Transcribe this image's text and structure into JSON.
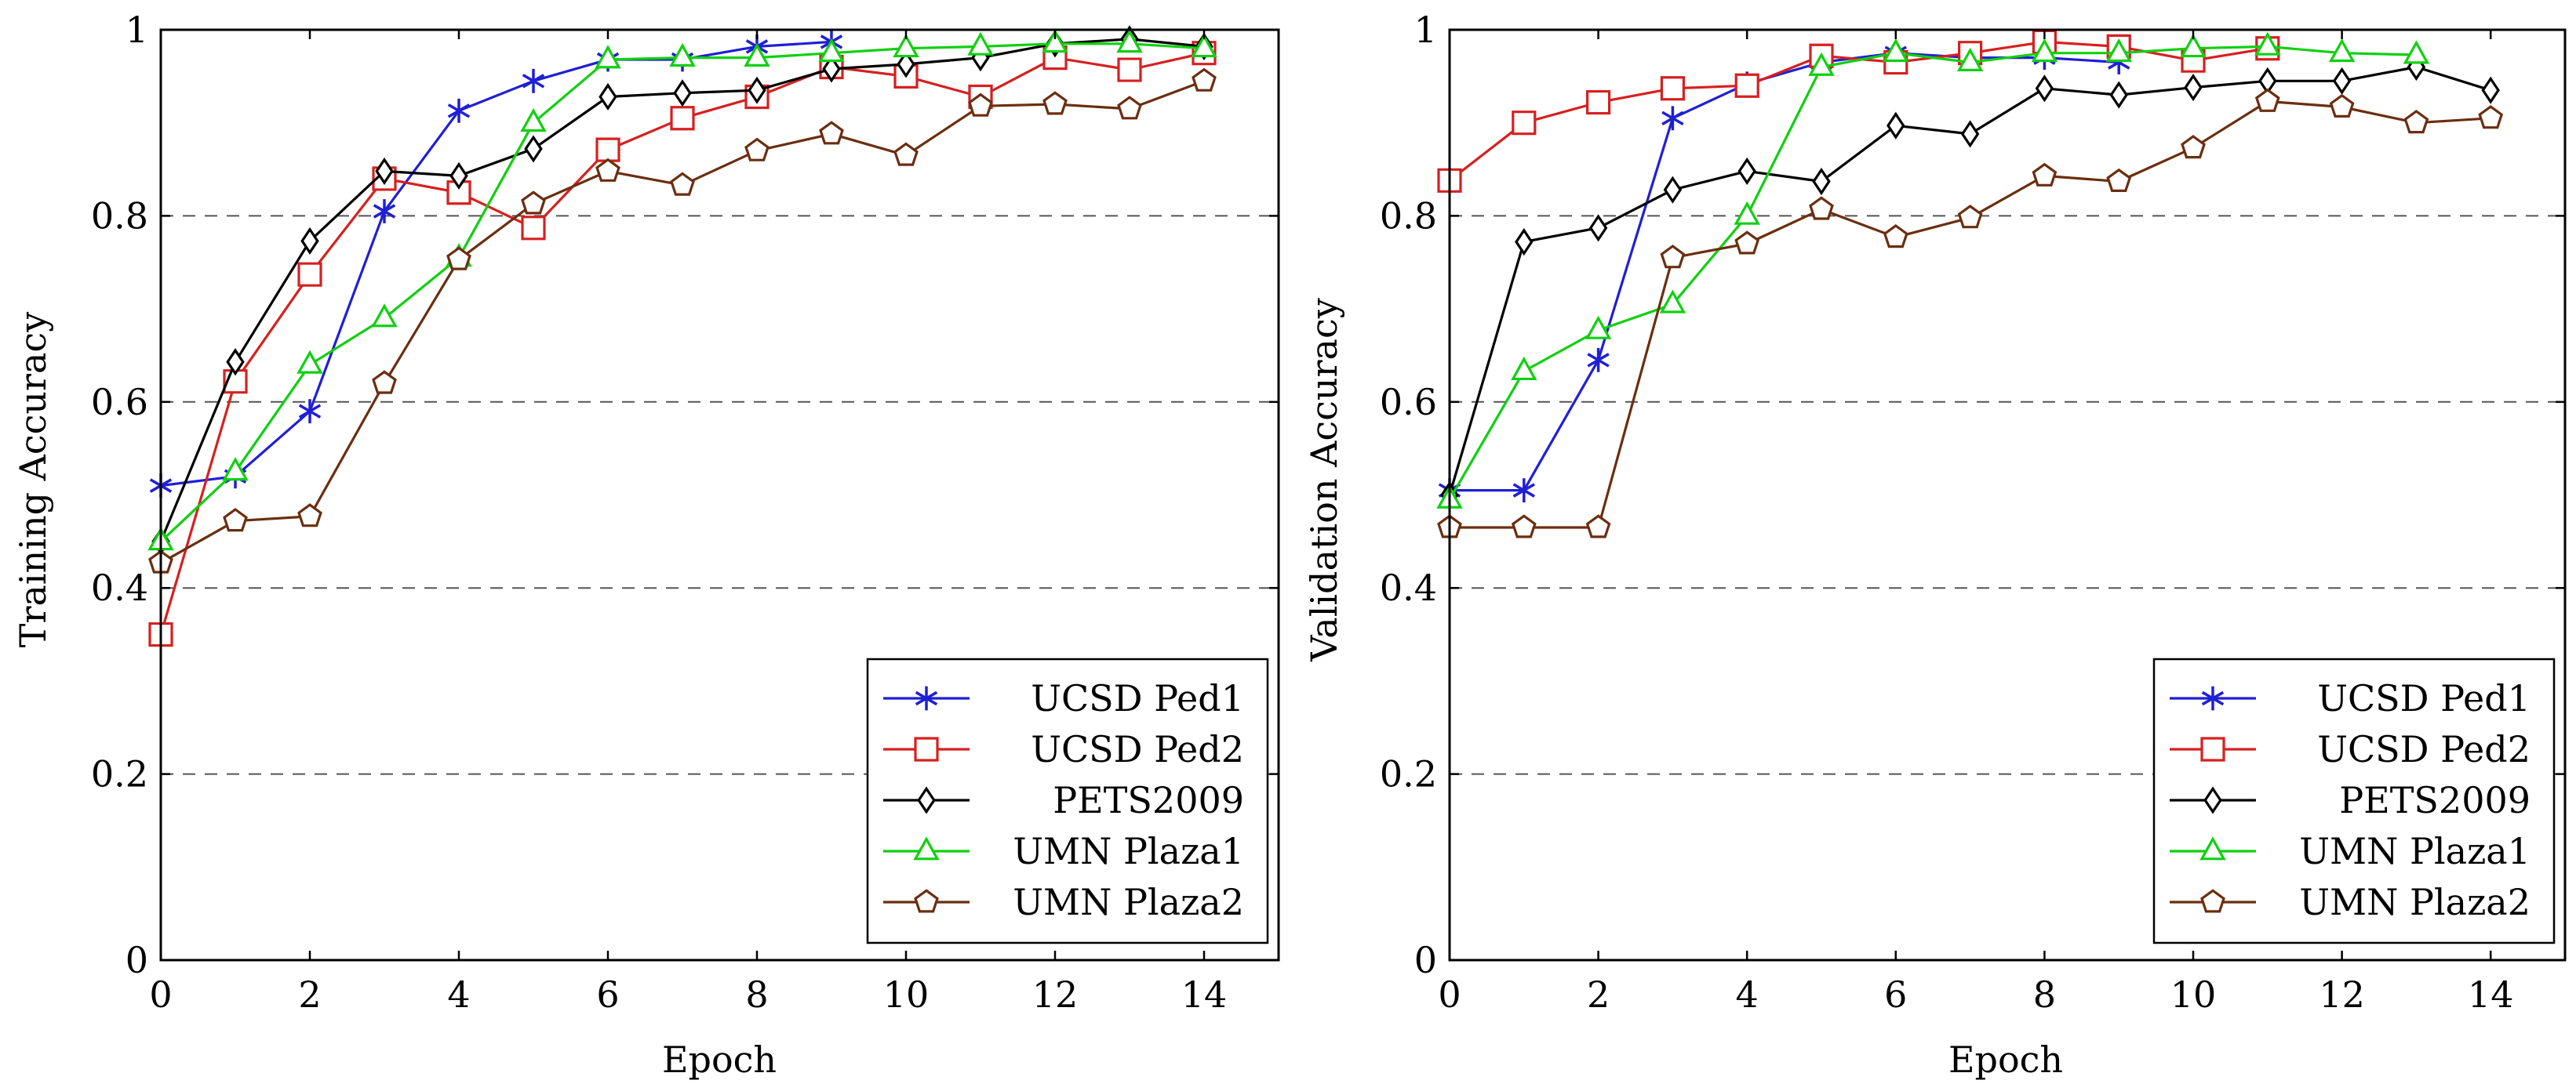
{
  "chart_data": [
    {
      "type": "line",
      "title": "",
      "xlabel": "Epoch",
      "ylabel": "Training Accuracy",
      "xlim": [
        0,
        15
      ],
      "ylim": [
        0,
        1
      ],
      "xticks": [
        0,
        2,
        4,
        6,
        8,
        10,
        12,
        14
      ],
      "yticks": [
        0,
        0.2,
        0.4,
        0.6,
        0.8,
        1
      ],
      "ytick_labels": [
        "0",
        "0.2",
        "0.4",
        "0.6",
        "0.8",
        "1"
      ],
      "grid": "horizontal-dashed",
      "legend_position": "bottom-right",
      "series": [
        {
          "name": "UCSD Ped1",
          "color": "#1f1fd6",
          "marker": "star",
          "x": [
            0,
            1,
            2,
            3,
            4,
            5,
            6,
            7,
            8,
            9
          ],
          "values": [
            0.51,
            0.52,
            0.59,
            0.805,
            0.913,
            0.945,
            0.968,
            0.968,
            0.982,
            0.987
          ]
        },
        {
          "name": "UCSD Ped2",
          "color": "#d62020",
          "marker": "square",
          "x": [
            0,
            1,
            2,
            3,
            4,
            5,
            6,
            7,
            8,
            9,
            10,
            11,
            12,
            13,
            14
          ],
          "values": [
            0.35,
            0.622,
            0.737,
            0.84,
            0.825,
            0.787,
            0.871,
            0.905,
            0.928,
            0.96,
            0.95,
            0.928,
            0.97,
            0.957,
            0.975
          ]
        },
        {
          "name": "PETS2009",
          "color": "#000000",
          "marker": "diamond",
          "x": [
            0,
            1,
            2,
            3,
            4,
            5,
            6,
            7,
            8,
            9,
            10,
            11,
            12,
            13,
            14
          ],
          "values": [
            0.45,
            0.643,
            0.773,
            0.848,
            0.843,
            0.872,
            0.928,
            0.932,
            0.935,
            0.958,
            0.963,
            0.97,
            0.985,
            0.99,
            0.982
          ]
        },
        {
          "name": "UMN Plaza1",
          "color": "#10d010",
          "marker": "triangle",
          "x": [
            0,
            1,
            2,
            3,
            4,
            5,
            6,
            7,
            8,
            9,
            10,
            11,
            12,
            13,
            14
          ],
          "values": [
            0.45,
            0.525,
            0.64,
            0.69,
            0.755,
            0.9,
            0.968,
            0.97,
            0.97,
            0.975,
            0.98,
            0.982,
            0.985,
            0.985,
            0.98
          ]
        },
        {
          "name": "UMN Plaza2",
          "color": "#6b2e10",
          "marker": "pentagon",
          "x": [
            0,
            1,
            2,
            3,
            4,
            5,
            6,
            7,
            8,
            9,
            10,
            11,
            12,
            13,
            14
          ],
          "values": [
            0.427,
            0.472,
            0.477,
            0.62,
            0.753,
            0.813,
            0.848,
            0.833,
            0.87,
            0.888,
            0.865,
            0.918,
            0.92,
            0.915,
            0.945
          ]
        }
      ]
    },
    {
      "type": "line",
      "title": "",
      "xlabel": "Epoch",
      "ylabel": "Validation Accuracy",
      "xlim": [
        0,
        15
      ],
      "ylim": [
        0,
        1
      ],
      "xticks": [
        0,
        2,
        4,
        6,
        8,
        10,
        12,
        14
      ],
      "yticks": [
        0,
        0.2,
        0.4,
        0.6,
        0.8,
        1
      ],
      "ytick_labels": [
        "0",
        "0.2",
        "0.4",
        "0.6",
        "0.8",
        "1"
      ],
      "grid": "horizontal-dashed",
      "legend_position": "bottom-right",
      "series": [
        {
          "name": "UCSD Ped1",
          "color": "#1f1fd6",
          "marker": "star",
          "x": [
            0,
            1,
            2,
            3,
            4,
            5,
            6,
            7,
            8,
            9
          ],
          "values": [
            0.505,
            0.505,
            0.645,
            0.905,
            0.942,
            0.965,
            0.975,
            0.97,
            0.97,
            0.965
          ]
        },
        {
          "name": "UCSD Ped2",
          "color": "#d62020",
          "marker": "square",
          "x": [
            0,
            1,
            2,
            3,
            4,
            5,
            6,
            7,
            8,
            9,
            10,
            11
          ],
          "values": [
            0.838,
            0.9,
            0.922,
            0.937,
            0.94,
            0.972,
            0.965,
            0.975,
            0.987,
            0.982,
            0.967,
            0.98
          ]
        },
        {
          "name": "PETS2009",
          "color": "#000000",
          "marker": "diamond",
          "x": [
            0,
            1,
            2,
            3,
            4,
            5,
            6,
            7,
            8,
            9,
            10,
            11,
            12,
            13,
            14
          ],
          "values": [
            0.5,
            0.772,
            0.787,
            0.828,
            0.848,
            0.837,
            0.897,
            0.888,
            0.937,
            0.93,
            0.938,
            0.945,
            0.945,
            0.96,
            0.935
          ]
        },
        {
          "name": "UMN Plaza1",
          "color": "#10d010",
          "marker": "triangle",
          "x": [
            0,
            1,
            2,
            3,
            4,
            5,
            6,
            7,
            8,
            9,
            10,
            11,
            12,
            13
          ],
          "values": [
            0.495,
            0.633,
            0.677,
            0.705,
            0.8,
            0.96,
            0.975,
            0.965,
            0.975,
            0.975,
            0.98,
            0.982,
            0.975,
            0.973
          ]
        },
        {
          "name": "UMN Plaza2",
          "color": "#6b2e10",
          "marker": "pentagon",
          "x": [
            0,
            1,
            2,
            3,
            4,
            5,
            6,
            7,
            8,
            9,
            10,
            11,
            12,
            13,
            14
          ],
          "values": [
            0.465,
            0.465,
            0.465,
            0.755,
            0.77,
            0.807,
            0.777,
            0.798,
            0.843,
            0.837,
            0.873,
            0.923,
            0.917,
            0.9,
            0.905
          ]
        }
      ]
    }
  ]
}
